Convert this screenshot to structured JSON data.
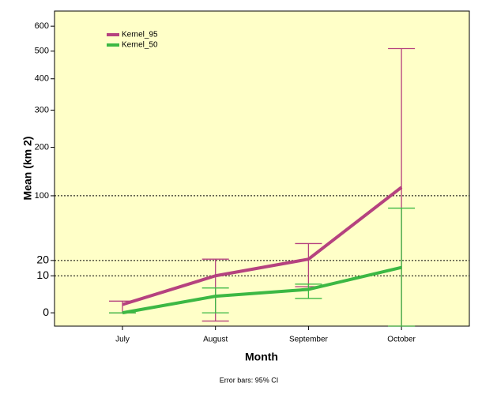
{
  "chart_data": {
    "type": "line",
    "y_label": "Mean (km 2)",
    "x_label": "Month",
    "footnote": "Error bars: 95% CI",
    "categories": [
      "July",
      "August",
      "September",
      "October"
    ],
    "series": [
      {
        "name": "Kernel_95",
        "color": "#b5427f",
        "values": [
          0.5,
          10,
          21,
          115
        ],
        "err_low": [
          0,
          -0.5,
          5,
          -1.3
        ],
        "err_high": [
          1,
          21,
          35,
          510
        ]
      },
      {
        "name": "Kernel_50",
        "color": "#3cb844",
        "values": [
          0,
          2,
          4,
          15
        ],
        "err_low": [
          0,
          0,
          1.5,
          -1.3
        ],
        "err_high": [
          0,
          4.5,
          6,
          80
        ]
      }
    ],
    "ylim": [
      -1.3,
      665
    ],
    "yticks": [
      0,
      10,
      20,
      100,
      200,
      300,
      400,
      500,
      600
    ],
    "yscale": "sqrt",
    "reference_lines": [
      10,
      20,
      100
    ],
    "plot_background": "#ffffc8"
  }
}
